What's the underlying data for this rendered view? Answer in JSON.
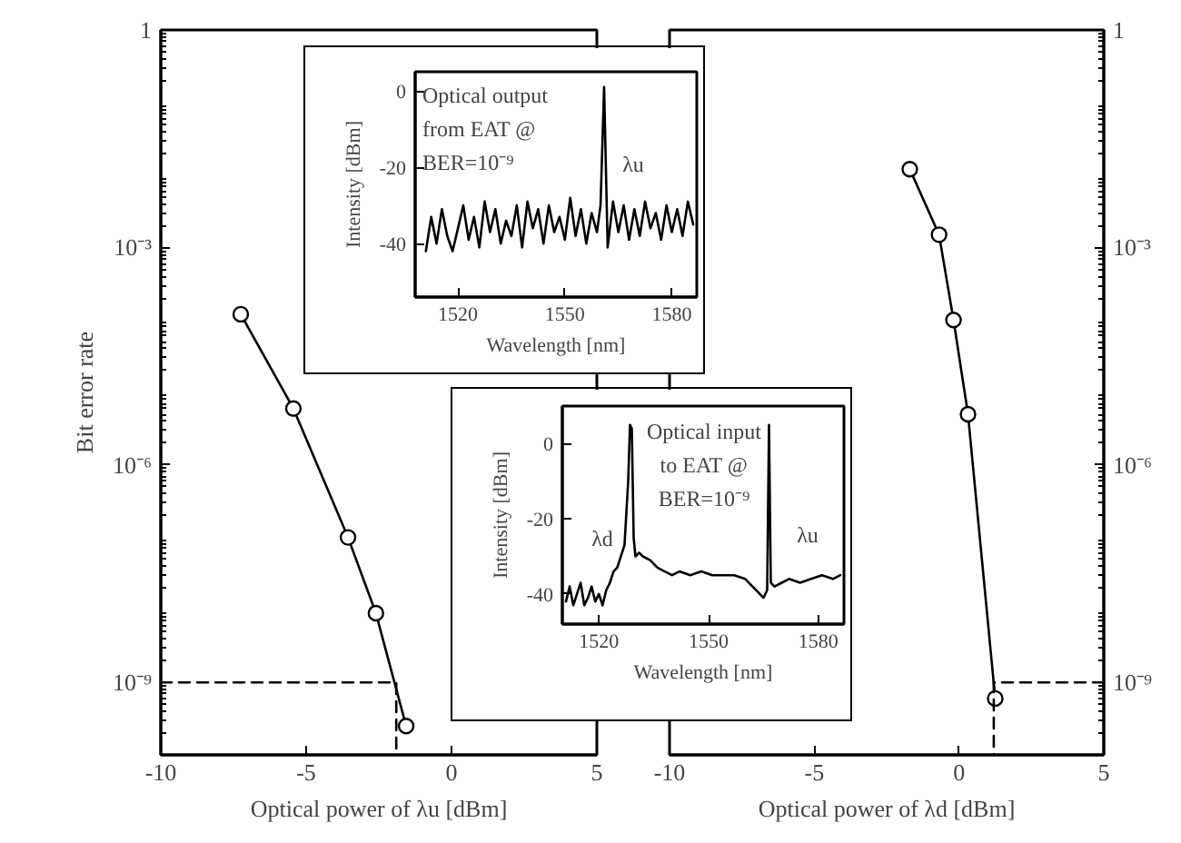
{
  "chart_data": [
    {
      "type": "line",
      "xlabel": "Optical power of λu [dBm]",
      "ylabel": "Bit error rate",
      "log": "y",
      "grid": false,
      "xlim": [
        -10,
        5
      ],
      "xticks": [
        -10,
        -5,
        0,
        5
      ],
      "ylim": [
        1e-10,
        1
      ],
      "yticks": [
        1,
        {
          "value": 0.001,
          "label": "10⁻³"
        },
        {
          "value": 1e-06,
          "label": "10⁻⁶"
        },
        {
          "value": 1e-09,
          "label": "10⁻⁹"
        }
      ],
      "series": [
        {
          "color": "#000000",
          "marker": "circle",
          "line_style": "solid",
          "x": [
            -7.25,
            -5.44,
            -3.56,
            -2.6,
            -1.56
          ],
          "values": [
            0.00012,
            6e-06,
            1e-07,
            9e-09,
            2.5e-10
          ]
        },
        {
          "color": "#000000",
          "marker": "none",
          "line_style": "dashed",
          "x": [
            -10,
            -1.9,
            -1.9
          ],
          "values": [
            1e-09,
            1e-09,
            1e-10
          ]
        }
      ]
    },
    {
      "type": "line",
      "xlabel": "Optical power of λd [dBm]",
      "log": "y2",
      "grid": false,
      "xlim": [
        -10,
        5
      ],
      "xticks": [
        -10,
        -5,
        0,
        5
      ],
      "y2lim": [
        1e-10,
        1
      ],
      "y2ticks": [
        1,
        {
          "value": 0.001,
          "label": "10⁻³"
        },
        {
          "value": 1e-06,
          "label": "10⁻⁶"
        },
        {
          "value": 1e-09,
          "label": "10⁻⁹"
        }
      ],
      "series": [
        {
          "color": "#000000",
          "marker": "circle",
          "line_style": "solid",
          "axis": "y2",
          "x": [
            -1.7,
            -0.69,
            -0.19,
            0.31,
            1.25
          ],
          "values": [
            0.012,
            0.0015,
            0.0001,
            5e-06,
            6e-10
          ]
        },
        {
          "color": "#000000",
          "marker": "none",
          "line_style": "dashed",
          "axis": "y2",
          "x": [
            5,
            1.2,
            1.2
          ],
          "values": [
            1e-09,
            1e-09,
            1e-10
          ]
        }
      ]
    },
    {
      "type": "line",
      "xlabel": "Wavelength [nm]",
      "ylabel": "Intensity [dBm]",
      "grid": false,
      "xlim": [
        1508,
        1587
      ],
      "xticks": [
        1520,
        1550,
        1580
      ],
      "ylim": [
        -54,
        5
      ],
      "yticks": [
        0,
        -20,
        -40
      ],
      "annotations": [
        "Optical output\nfrom EAT @\nBER=10⁻⁹",
        "λu"
      ],
      "series": [
        {
          "color": "#000000",
          "x": [
            1511,
            1512.5,
            1514,
            1515.5,
            1517,
            1518.5,
            1520,
            1521.5,
            1523,
            1524.5,
            1526,
            1527.5,
            1529,
            1530.5,
            1532,
            1533.5,
            1535,
            1536.5,
            1538,
            1539.5,
            1541,
            1542.5,
            1544,
            1545.5,
            1547,
            1548.5,
            1550,
            1551.5,
            1553,
            1554.5,
            1556,
            1557.5,
            1559,
            1560,
            1561,
            1562,
            1563.5,
            1565,
            1566.5,
            1568,
            1569.5,
            1571,
            1572.5,
            1574,
            1575.5,
            1577,
            1578.5,
            1580,
            1581.5,
            1583,
            1584.5,
            1586
          ],
          "values": [
            -42,
            -33,
            -40,
            -31,
            -38,
            -42,
            -36,
            -30,
            -39,
            -33,
            -41,
            -29,
            -37,
            -31,
            -40,
            -34,
            -38,
            -30,
            -41,
            -29,
            -36,
            -31,
            -40,
            -30,
            -37,
            -33,
            -39,
            -28,
            -38,
            -31,
            -40,
            -32,
            -37,
            -30,
            1,
            -41,
            -29,
            -37,
            -30,
            -39,
            -31,
            -38,
            -29,
            -36,
            -32,
            -39,
            -30,
            -37,
            -31,
            -38,
            -29,
            -35
          ]
        }
      ]
    },
    {
      "type": "line",
      "xlabel": "Wavelength [nm]",
      "ylabel": "Intensity [dBm]",
      "grid": false,
      "xlim": [
        1510,
        1587
      ],
      "xticks": [
        1520,
        1550,
        1580
      ],
      "ylim": [
        -48,
        10
      ],
      "yticks": [
        0,
        -20,
        -40
      ],
      "annotations": [
        "Optical input\nto EAT @\nBER=10⁻⁹",
        "λd",
        "λu"
      ],
      "series": [
        {
          "color": "#000000",
          "x": [
            1511,
            1512,
            1513,
            1514,
            1515,
            1516,
            1517,
            1518,
            1519,
            1520,
            1521,
            1522,
            1523,
            1524,
            1525,
            1526,
            1527,
            1528,
            1528.5,
            1529,
            1529.5,
            1530,
            1531,
            1532,
            1534,
            1536,
            1538,
            1540,
            1542,
            1545,
            1548,
            1551,
            1554,
            1557,
            1560,
            1562,
            1564,
            1565,
            1566,
            1566.5,
            1567,
            1568,
            1570,
            1572,
            1575,
            1578,
            1581,
            1584,
            1586
          ],
          "values": [
            -42,
            -38,
            -43,
            -40,
            -37,
            -43,
            -41,
            -38,
            -42,
            -40,
            -43,
            -39,
            -37,
            -34,
            -33,
            -30,
            -27,
            -10,
            5,
            4,
            -25,
            -30,
            -29,
            -30,
            -31,
            -33,
            -34,
            -35,
            -34,
            -35,
            -34,
            -35,
            -35,
            -35,
            -36,
            -38,
            -40,
            -41,
            -39,
            5,
            -37,
            -38,
            -37,
            -36,
            -37,
            -36,
            -35,
            -36,
            -35
          ]
        }
      ]
    }
  ]
}
